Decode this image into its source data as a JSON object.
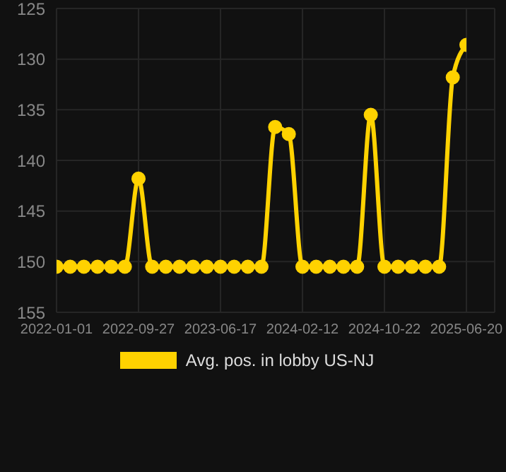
{
  "chart_data": {
    "type": "line",
    "categories": [
      "2022-01-01",
      null,
      null,
      null,
      null,
      null,
      "2022-09-27",
      null,
      null,
      null,
      null,
      null,
      "2023-06-17",
      null,
      null,
      null,
      null,
      null,
      "2024-02-12",
      null,
      null,
      null,
      null,
      null,
      "2024-10-22",
      null,
      null,
      null,
      null,
      null,
      "2025-06-20"
    ],
    "series": [
      {
        "name": "Avg. pos. in lobby US-NJ",
        "color": "#ffd200",
        "values": [
          150.5,
          150.5,
          150.5,
          150.5,
          150.5,
          150.5,
          141.8,
          150.5,
          150.5,
          150.5,
          150.5,
          150.5,
          150.5,
          150.5,
          150.5,
          150.5,
          136.7,
          137.4,
          150.5,
          150.5,
          150.5,
          150.5,
          150.5,
          135.5,
          150.5,
          150.5,
          150.5,
          150.5,
          150.5,
          131.8,
          128.6
        ]
      }
    ],
    "ylim": [
      155,
      125
    ],
    "yticks": [
      125,
      130,
      135,
      140,
      145,
      150,
      155
    ],
    "grid": true,
    "legend": "bottom",
    "marker": "circle",
    "line_style": "solid"
  }
}
